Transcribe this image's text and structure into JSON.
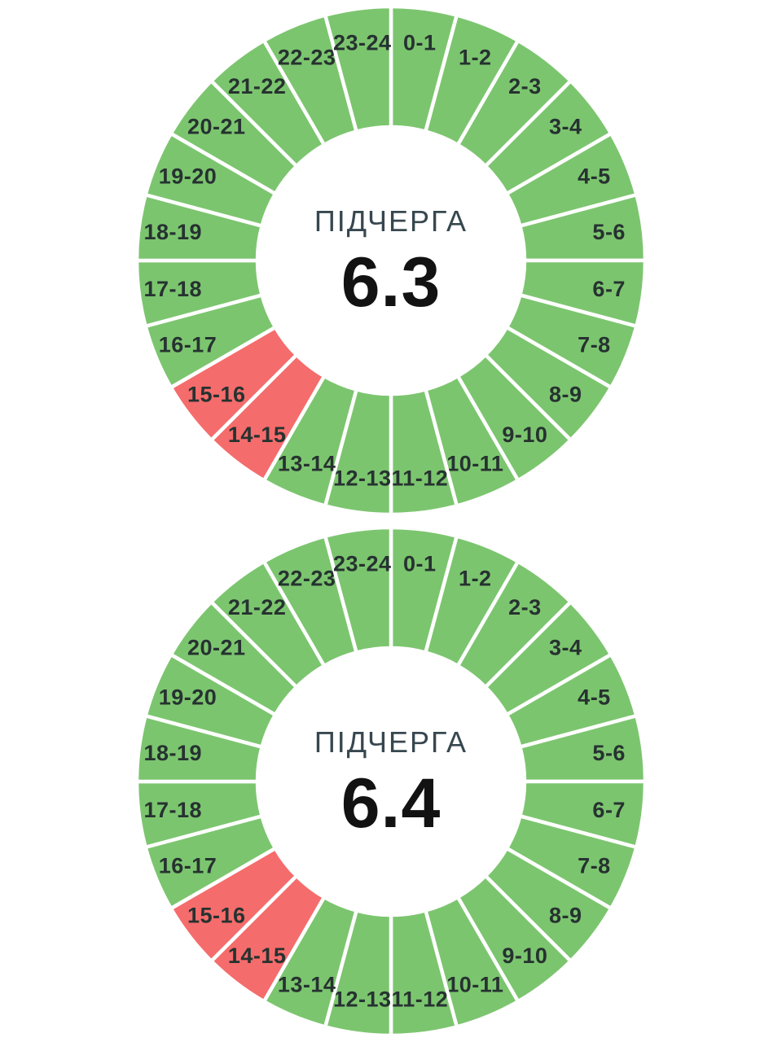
{
  "colors": {
    "available": "#7CC56F",
    "outage": "#F56C6C",
    "divider": "#FFFFFF"
  },
  "chart_data": [
    {
      "type": "pie",
      "subtype": "donut-24h-outage-schedule",
      "title": "ПІДЧЕРГА",
      "center_value": "6.3",
      "start_angle_deg": 0,
      "direction": "clockwise",
      "legend": "none",
      "segments": [
        {
          "label": "0-1",
          "value": 1,
          "state": "available"
        },
        {
          "label": "1-2",
          "value": 1,
          "state": "available"
        },
        {
          "label": "2-3",
          "value": 1,
          "state": "available"
        },
        {
          "label": "3-4",
          "value": 1,
          "state": "available"
        },
        {
          "label": "4-5",
          "value": 1,
          "state": "available"
        },
        {
          "label": "5-6",
          "value": 1,
          "state": "available"
        },
        {
          "label": "6-7",
          "value": 1,
          "state": "available"
        },
        {
          "label": "7-8",
          "value": 1,
          "state": "available"
        },
        {
          "label": "8-9",
          "value": 1,
          "state": "available"
        },
        {
          "label": "9-10",
          "value": 1,
          "state": "available"
        },
        {
          "label": "10-11",
          "value": 1,
          "state": "available"
        },
        {
          "label": "11-12",
          "value": 1,
          "state": "available"
        },
        {
          "label": "12-13",
          "value": 1,
          "state": "available"
        },
        {
          "label": "13-14",
          "value": 1,
          "state": "available"
        },
        {
          "label": "14-15",
          "value": 1,
          "state": "outage"
        },
        {
          "label": "15-16",
          "value": 1,
          "state": "outage"
        },
        {
          "label": "16-17",
          "value": 1,
          "state": "available"
        },
        {
          "label": "17-18",
          "value": 1,
          "state": "available"
        },
        {
          "label": "18-19",
          "value": 1,
          "state": "available"
        },
        {
          "label": "19-20",
          "value": 1,
          "state": "available"
        },
        {
          "label": "20-21",
          "value": 1,
          "state": "available"
        },
        {
          "label": "21-22",
          "value": 1,
          "state": "available"
        },
        {
          "label": "22-23",
          "value": 1,
          "state": "available"
        },
        {
          "label": "23-24",
          "value": 1,
          "state": "available"
        }
      ]
    },
    {
      "type": "pie",
      "subtype": "donut-24h-outage-schedule",
      "title": "ПІДЧЕРГА",
      "center_value": "6.4",
      "start_angle_deg": 0,
      "direction": "clockwise",
      "legend": "none",
      "segments": [
        {
          "label": "0-1",
          "value": 1,
          "state": "available"
        },
        {
          "label": "1-2",
          "value": 1,
          "state": "available"
        },
        {
          "label": "2-3",
          "value": 1,
          "state": "available"
        },
        {
          "label": "3-4",
          "value": 1,
          "state": "available"
        },
        {
          "label": "4-5",
          "value": 1,
          "state": "available"
        },
        {
          "label": "5-6",
          "value": 1,
          "state": "available"
        },
        {
          "label": "6-7",
          "value": 1,
          "state": "available"
        },
        {
          "label": "7-8",
          "value": 1,
          "state": "available"
        },
        {
          "label": "8-9",
          "value": 1,
          "state": "available"
        },
        {
          "label": "9-10",
          "value": 1,
          "state": "available"
        },
        {
          "label": "10-11",
          "value": 1,
          "state": "available"
        },
        {
          "label": "11-12",
          "value": 1,
          "state": "available"
        },
        {
          "label": "12-13",
          "value": 1,
          "state": "available"
        },
        {
          "label": "13-14",
          "value": 1,
          "state": "available"
        },
        {
          "label": "14-15",
          "value": 1,
          "state": "outage"
        },
        {
          "label": "15-16",
          "value": 1,
          "state": "outage"
        },
        {
          "label": "16-17",
          "value": 1,
          "state": "available"
        },
        {
          "label": "17-18",
          "value": 1,
          "state": "available"
        },
        {
          "label": "18-19",
          "value": 1,
          "state": "available"
        },
        {
          "label": "19-20",
          "value": 1,
          "state": "available"
        },
        {
          "label": "20-21",
          "value": 1,
          "state": "available"
        },
        {
          "label": "21-22",
          "value": 1,
          "state": "available"
        },
        {
          "label": "22-23",
          "value": 1,
          "state": "available"
        },
        {
          "label": "23-24",
          "value": 1,
          "state": "available"
        }
      ]
    }
  ]
}
